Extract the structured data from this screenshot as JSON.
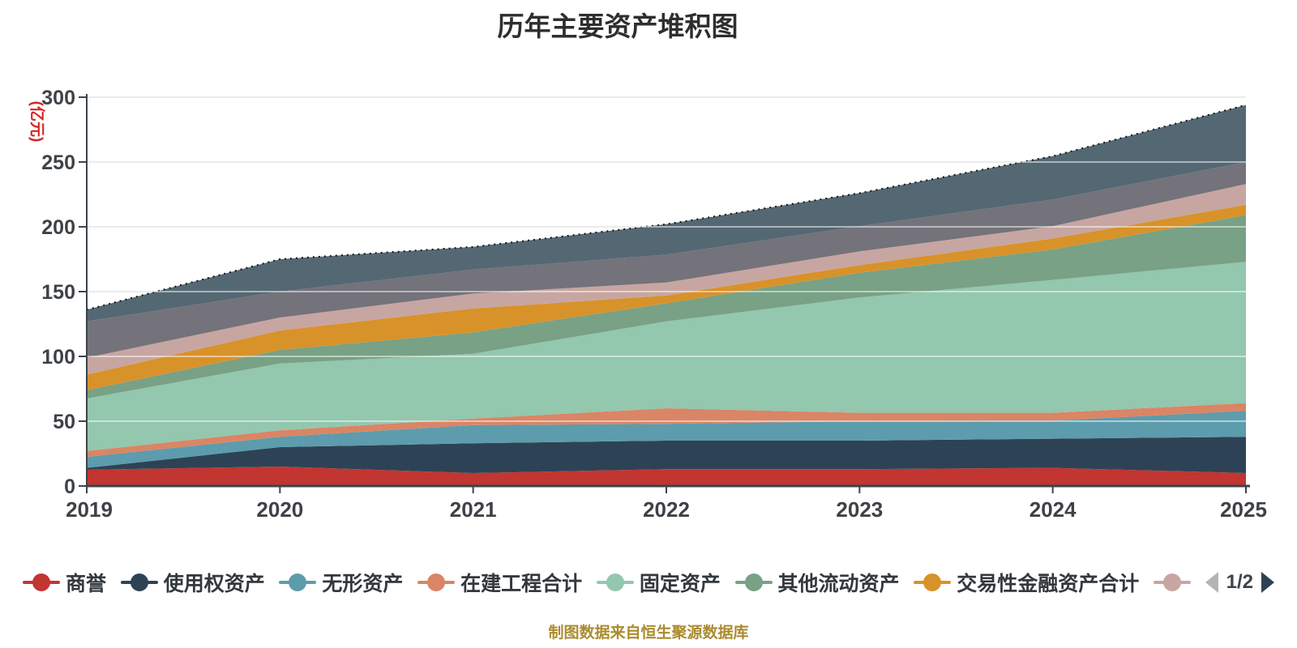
{
  "title": "历年主要资产堆积图",
  "footer": "制图数据来自恒生聚源数据库",
  "y_axis": {
    "unit": "(亿元)"
  },
  "chart_data": {
    "type": "area",
    "stacked": true,
    "title": "历年主要资产堆积图",
    "ylabel": "(亿元)",
    "xlabel": "",
    "x": [
      "2019",
      "2020",
      "2021",
      "2022",
      "2023",
      "2024",
      "2025"
    ],
    "ylim": [
      0,
      300
    ],
    "yticks": [
      0,
      50,
      100,
      150,
      200,
      250,
      300
    ],
    "grid": true,
    "legend_position": "bottom",
    "legend_page": "1/2",
    "top_outline": "dotted",
    "series": [
      {
        "key": "goodwill",
        "name": "商誉",
        "color": "#c23531",
        "in_legend": true,
        "values": [
          12.5,
          15,
          10,
          13,
          13,
          14,
          10
        ]
      },
      {
        "key": "right-of-use-assets",
        "name": "使用权资产",
        "color": "#2d4355",
        "in_legend": true,
        "values": [
          1.5,
          15,
          23,
          22,
          22,
          22.5,
          28
        ]
      },
      {
        "key": "intangible-assets",
        "name": "无形资产",
        "color": "#5d9cac",
        "in_legend": true,
        "values": [
          8.5,
          8,
          14,
          13,
          15,
          14,
          20
        ]
      },
      {
        "key": "construction-in-progress",
        "name": "在建工程合计",
        "color": "#da8565",
        "in_legend": true,
        "values": [
          4.5,
          5,
          5,
          12,
          6.5,
          6,
          6
        ]
      },
      {
        "key": "fixed-assets",
        "name": "固定资产",
        "color": "#93c7ae",
        "in_legend": true,
        "values": [
          40.5,
          51.5,
          50,
          67,
          89,
          102.5,
          109
        ]
      },
      {
        "key": "other-current-assets",
        "name": "其他流动资产",
        "color": "#78a185",
        "in_legend": true,
        "values": [
          6.5,
          10.5,
          16.5,
          14,
          19,
          23.5,
          36
        ]
      },
      {
        "key": "trading-financial-assets",
        "name": "交易性金融资产合计",
        "color": "#d8922a",
        "in_legend": true,
        "values": [
          12,
          15,
          18.5,
          6,
          6,
          8.5,
          8
        ]
      },
      {
        "key": "series-8",
        "name": "",
        "color": "#c7a6a1",
        "in_legend": true,
        "values": [
          13,
          10,
          11.5,
          10,
          10.5,
          9.5,
          16
        ]
      },
      {
        "key": "series-9",
        "name": "",
        "color": "#74727a",
        "in_legend": false,
        "values": [
          28,
          20,
          18.5,
          21.5,
          19.5,
          20.5,
          17
        ]
      },
      {
        "key": "series-10",
        "name": "",
        "color": "#546874",
        "in_legend": false,
        "values": [
          9,
          25,
          17.5,
          23.5,
          25.5,
          33.5,
          44
        ]
      }
    ]
  },
  "colors": {
    "title_text": "#2e2e2e",
    "axis_line": "#3b444c",
    "tick_text": "#3e4247",
    "unit_text": "#d62323",
    "gridline": "#d6d6d6",
    "footer_text": "#ab8b2e",
    "pager_prev": "#b2b5b7",
    "pager_next": "#2d4355"
  }
}
